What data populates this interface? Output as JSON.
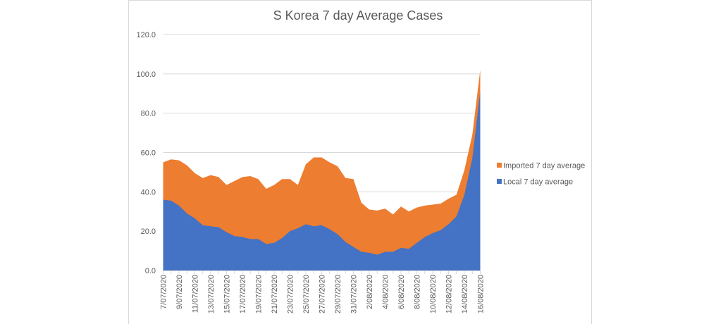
{
  "chart_data": {
    "type": "area",
    "stacked": true,
    "title": "S Korea 7 day Average Cases",
    "xlabel": "",
    "ylabel": "",
    "ylim": [
      0,
      120
    ],
    "yticks": [
      "0.0",
      "20.0",
      "40.0",
      "60.0",
      "80.0",
      "100.0",
      "120.0"
    ],
    "grid": true,
    "legend_position": "right",
    "categories": [
      "7/07/2020",
      "8/07/2020",
      "9/07/2020",
      "10/07/2020",
      "11/07/2020",
      "12/07/2020",
      "13/07/2020",
      "14/07/2020",
      "15/07/2020",
      "16/07/2020",
      "17/07/2020",
      "18/07/2020",
      "19/07/2020",
      "20/07/2020",
      "21/07/2020",
      "22/07/2020",
      "23/07/2020",
      "24/07/2020",
      "25/07/2020",
      "26/07/2020",
      "27/07/2020",
      "28/07/2020",
      "29/07/2020",
      "30/07/2020",
      "31/07/2020",
      "1/08/2020",
      "2/08/2020",
      "3/08/2020",
      "4/08/2020",
      "5/08/2020",
      "6/08/2020",
      "7/08/2020",
      "8/08/2020",
      "9/08/2020",
      "10/08/2020",
      "11/08/2020",
      "12/08/2020",
      "13/08/2020",
      "14/08/2020",
      "15/08/2020",
      "16/08/2020"
    ],
    "xtick_labels": [
      "7/07/2020",
      "9/07/2020",
      "11/07/2020",
      "13/07/2020",
      "15/07/2020",
      "17/07/2020",
      "19/07/2020",
      "21/07/2020",
      "23/07/2020",
      "25/07/2020",
      "27/07/2020",
      "29/07/2020",
      "31/07/2020",
      "2/08/2020",
      "4/08/2020",
      "6/08/2020",
      "8/08/2020",
      "10/08/2020",
      "12/08/2020",
      "14/08/2020",
      "16/08/2020"
    ],
    "series": [
      {
        "name": "Local 7 day average",
        "color": "#4472c4",
        "values": [
          36,
          35.5,
          33,
          29,
          26.5,
          23,
          22.5,
          22,
          19.5,
          17.5,
          17,
          16,
          16,
          13.5,
          14,
          16.5,
          20,
          21.5,
          23.5,
          22.5,
          23,
          21,
          18.5,
          14.5,
          12,
          9.5,
          9,
          8,
          9.5,
          9.5,
          11.5,
          11,
          14,
          17,
          19,
          20.5,
          23.5,
          27.5,
          38.5,
          57,
          91
        ]
      },
      {
        "name": "Imported 7 day average",
        "color": "#ed7d31",
        "values": [
          19,
          21,
          23,
          24.5,
          23,
          24,
          26,
          25.5,
          24,
          28,
          30.5,
          32,
          30.5,
          28,
          29.5,
          30,
          26.5,
          22,
          30.5,
          35,
          34.5,
          34,
          34.5,
          32.5,
          34.5,
          25,
          22,
          22.5,
          22,
          19,
          21,
          19,
          18,
          16,
          14.5,
          13.5,
          13,
          11,
          12.5,
          12,
          11
        ]
      }
    ],
    "legend": [
      "Imported 7 day average",
      "Local 7 day average"
    ]
  }
}
